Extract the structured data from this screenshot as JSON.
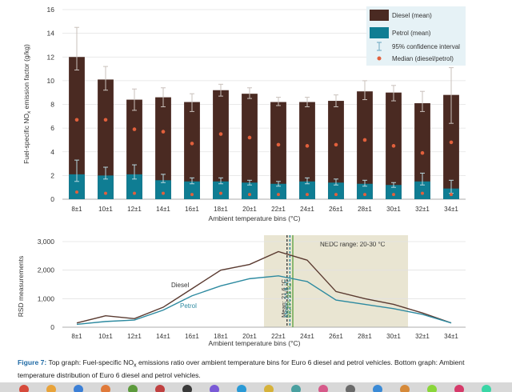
{
  "chart_data": [
    {
      "type": "bar",
      "title": "",
      "xlabel": "Ambient temperature bins (°C)",
      "ylabel": "Fuel-specific NO",
      "ylabel_sub": "x",
      "ylabel_suffix": " emission factor (g/kg)",
      "ylim": [
        0,
        16
      ],
      "yticks": [
        "0",
        "2",
        "4",
        "6",
        "8",
        "10",
        "12",
        "14",
        "16"
      ],
      "grid": true,
      "legend_position": "top-right",
      "categories": [
        "8±1",
        "10±1",
        "12±1",
        "14±1",
        "16±1",
        "18±1",
        "20±1",
        "22±1",
        "24±1",
        "26±1",
        "28±1",
        "30±1",
        "32±1",
        "34±1"
      ],
      "series": [
        {
          "name": "Diesel (mean)",
          "color": "#4a2a22",
          "values": [
            12.0,
            10.1,
            8.4,
            8.6,
            8.2,
            9.2,
            8.9,
            8.2,
            8.2,
            8.3,
            9.1,
            9.0,
            8.1,
            8.8
          ],
          "ci_low": [
            10.9,
            9.2,
            7.5,
            7.8,
            7.4,
            8.7,
            8.5,
            7.9,
            7.8,
            7.8,
            8.4,
            8.3,
            7.4,
            6.4
          ],
          "ci_high": [
            14.5,
            11.2,
            9.3,
            9.4,
            8.9,
            9.7,
            9.4,
            8.6,
            8.6,
            8.8,
            10.0,
            9.6,
            9.1,
            11.1
          ]
        },
        {
          "name": "Petrol (mean)",
          "color": "#0f7d93",
          "values": [
            2.1,
            2.0,
            2.1,
            1.6,
            1.5,
            1.5,
            1.4,
            1.3,
            1.5,
            1.4,
            1.3,
            1.2,
            1.5,
            0.9
          ],
          "ci_low": [
            1.5,
            1.7,
            1.7,
            1.4,
            1.3,
            1.3,
            1.2,
            1.1,
            1.3,
            1.2,
            1.1,
            1.0,
            1.2,
            0.5
          ],
          "ci_high": [
            3.3,
            2.7,
            2.9,
            2.1,
            1.8,
            1.8,
            1.6,
            1.5,
            1.8,
            1.7,
            1.6,
            1.4,
            2.2,
            1.6
          ]
        }
      ],
      "median_ratio": {
        "name": "Median (diesel/petrol)",
        "color": "#e2603c",
        "values": [
          6.7,
          6.7,
          5.9,
          5.7,
          4.7,
          5.5,
          5.2,
          4.6,
          4.5,
          4.6,
          5.0,
          4.5,
          3.9,
          4.8
        ],
        "lower_points": [
          0.6,
          0.5,
          0.5,
          0.5,
          0.4,
          0.5,
          0.4,
          0.4,
          0.4,
          0.4,
          0.4,
          0.4,
          0.5,
          0.4
        ]
      },
      "legend": [
        "Diesel (mean)",
        "Petrol (mean)",
        "95% confidence interval",
        "Median (diesel/petrol)"
      ]
    },
    {
      "type": "line",
      "title": "",
      "xlabel": "Ambient temperature bins (°C)",
      "ylabel": "RSD measurements",
      "ylim": [
        0,
        3000
      ],
      "yticks": [
        "0",
        "1,000",
        "2,000",
        "3,000"
      ],
      "categories": [
        "8±1",
        "10±1",
        "12±1",
        "14±1",
        "16±1",
        "18±1",
        "20±1",
        "22±1",
        "24±1",
        "26±1",
        "28±1",
        "30±1",
        "32±1",
        "34±1"
      ],
      "series": [
        {
          "name": "Diesel",
          "color": "#5a3a30",
          "values": [
            150,
            400,
            300,
            700,
            1350,
            2000,
            2200,
            2650,
            2350,
            1250,
            1000,
            800,
            500,
            150
          ]
        },
        {
          "name": "Petrol",
          "color": "#2d8aa0",
          "values": [
            100,
            200,
            250,
            600,
            1100,
            1450,
            1700,
            1800,
            1600,
            950,
            800,
            650,
            450,
            150
          ]
        }
      ],
      "shaded_range": {
        "label": "NEDC range: 20-30 °C",
        "from_index": 6,
        "to_index": 11,
        "color": "#e9e5d2"
      },
      "vlines": [
        {
          "label": "Mean: 21.6 °C",
          "position_index": 7.3,
          "color": "#333333",
          "dashed": true
        },
        {
          "label": "Mean: 21.8 °C",
          "position_index": 7.4,
          "color": "#1a7f95",
          "dashed": true
        },
        {
          "label": "WLTP: 23 °C",
          "position_index": 7.5,
          "color": "#5aa03c",
          "dashed": false
        }
      ]
    }
  ],
  "caption": {
    "figure_label": "Figure 7:",
    "text_before": " Top graph: Fuel-specific NO",
    "sub": "x",
    "text_after": " emissions ratio over ambient temperature bins for Euro 6 diesel and petrol vehicles. Bottom graph: Ambient temperature distribution of Euro 6 diesel and petrol vehicles."
  }
}
